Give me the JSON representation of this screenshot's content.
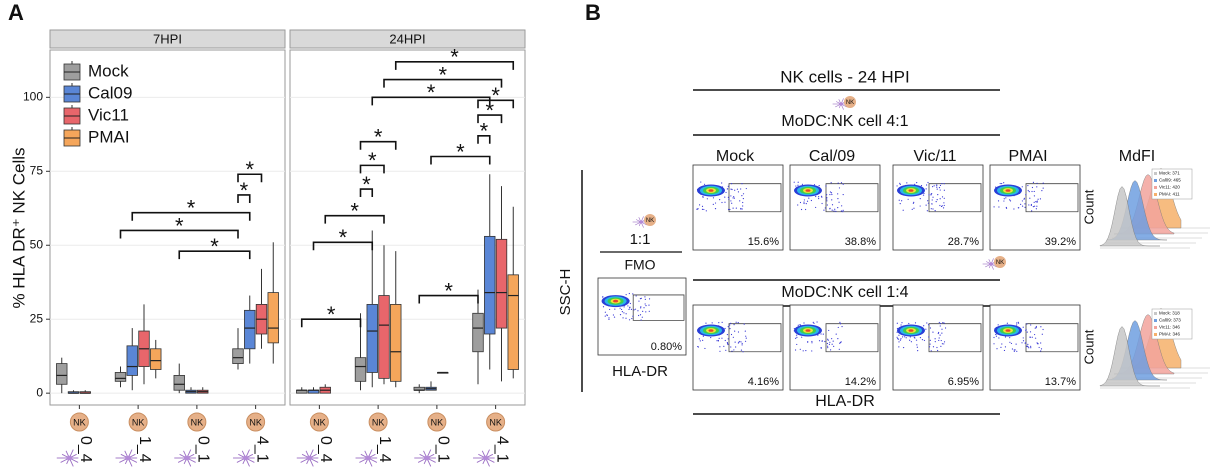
{
  "panel_labels": [
    "A",
    "B"
  ],
  "chart_data": {
    "type": "box",
    "ylabel": "% HLA DR⁺ NK Cells",
    "facets": [
      "7HPI",
      "24HPI"
    ],
    "categories": [
      "0_4",
      "1_4",
      "0_1",
      "4_1"
    ],
    "icon_label": "NK",
    "ylim": [
      -4,
      116
    ],
    "yticks": [
      0,
      25,
      50,
      75,
      100
    ],
    "grid": true,
    "legend": "top-left",
    "series": [
      {
        "name": "Mock",
        "color": "#9e9e9e",
        "values": [
          [
            [
              0,
              3,
              6,
              10,
              12
            ],
            [
              2,
              4,
              5,
              7,
              9
            ],
            [
              0,
              1,
              3,
              6,
              10
            ],
            [
              8,
              10,
              12,
              15,
              22
            ]
          ],
          [
            [
              0,
              0,
              1,
              1,
              2
            ],
            [
              1,
              4,
              9,
              12,
              27
            ],
            [
              0,
              1,
              1,
              2,
              3
            ],
            [
              3,
              14,
              22,
              27,
              35
            ]
          ]
        ]
      },
      {
        "name": "Cal09",
        "color": "#5a86d6",
        "values": [
          [
            [
              0,
              0,
              0,
              0.5,
              1
            ],
            [
              1,
              6,
              9,
              16,
              22
            ],
            [
              0,
              0,
              0.5,
              1,
              2
            ],
            [
              10,
              15,
              22,
              28,
              33
            ]
          ],
          [
            [
              0,
              0,
              1,
              1,
              2
            ],
            [
              2,
              7,
              21,
              30,
              55
            ],
            [
              1,
              1,
              1.5,
              2,
              4
            ],
            [
              8,
              20,
              34,
              53,
              74
            ]
          ]
        ]
      },
      {
        "name": "Vic11",
        "color": "#e8666b",
        "values": [
          [
            [
              0,
              0,
              0,
              0.5,
              1
            ],
            [
              3,
              9,
              15,
              21,
              30
            ],
            [
              0,
              0,
              0.5,
              1,
              2
            ],
            [
              15,
              20,
              25,
              30,
              42
            ]
          ],
          [
            [
              0,
              0,
              1,
              2,
              3
            ],
            [
              3,
              5,
              23,
              33,
              50
            ],
            [
              7,
              7,
              7,
              7,
              7
            ],
            [
              4,
              22,
              34,
              52,
              70
            ]
          ]
        ]
      },
      {
        "name": "PMAI",
        "color": "#f5a65b",
        "values": [
          [
            null,
            [
              5,
              8,
              11,
              15,
              18
            ],
            null,
            [
              10,
              17,
              22,
              34,
              51
            ]
          ],
          [
            null,
            [
              2,
              4,
              14,
              30,
              48
            ],
            null,
            [
              5,
              8,
              33,
              40,
              63
            ]
          ]
        ]
      }
    ],
    "annotations": [
      {
        "text": "*",
        "facet": 0,
        "from": [
          1,
          1
        ],
        "to": [
          3,
          1
        ],
        "y": 61
      },
      {
        "text": "*",
        "facet": 0,
        "from": [
          1,
          0
        ],
        "to": [
          3,
          0
        ],
        "y": 55
      },
      {
        "text": "*",
        "facet": 0,
        "from": [
          2,
          0
        ],
        "to": [
          3,
          1
        ],
        "y": 48
      },
      {
        "text": "*",
        "facet": 0,
        "from": [
          3,
          0
        ],
        "to": [
          3,
          1
        ],
        "y": 67
      },
      {
        "text": "*",
        "facet": 0,
        "from": [
          3,
          0
        ],
        "to": [
          3,
          2
        ],
        "y": 74
      },
      {
        "text": "*",
        "facet": 1,
        "from": [
          0,
          0
        ],
        "to": [
          1,
          0
        ],
        "y": 25
      },
      {
        "text": "*",
        "facet": 1,
        "from": [
          0,
          1
        ],
        "to": [
          1,
          1
        ],
        "y": 51
      },
      {
        "text": "*",
        "facet": 1,
        "from": [
          0,
          2
        ],
        "to": [
          1,
          2
        ],
        "y": 60
      },
      {
        "text": "*",
        "facet": 1,
        "from": [
          1,
          0
        ],
        "to": [
          1,
          1
        ],
        "y": 69
      },
      {
        "text": "*",
        "facet": 1,
        "from": [
          1,
          0
        ],
        "to": [
          1,
          2
        ],
        "y": 77
      },
      {
        "text": "*",
        "facet": 1,
        "from": [
          1,
          0
        ],
        "to": [
          1,
          3
        ],
        "y": 85
      },
      {
        "text": "*",
        "facet": 1,
        "from": [
          2,
          0
        ],
        "to": [
          3,
          0
        ],
        "y": 33
      },
      {
        "text": "*",
        "facet": 1,
        "from": [
          2,
          1
        ],
        "to": [
          3,
          1
        ],
        "y": 80
      },
      {
        "text": "*",
        "facet": 1,
        "from": [
          3,
          0
        ],
        "to": [
          3,
          1
        ],
        "y": 87
      },
      {
        "text": "*",
        "facet": 1,
        "from": [
          3,
          0
        ],
        "to": [
          3,
          2
        ],
        "y": 94
      },
      {
        "text": "*",
        "facet": 1,
        "from": [
          3,
          0
        ],
        "to": [
          3,
          3
        ],
        "y": 99
      },
      {
        "text": "*",
        "facet": 1,
        "from": [
          1,
          1
        ],
        "to": [
          3,
          1
        ],
        "y": 100
      },
      {
        "text": "*",
        "facet": 1,
        "from": [
          1,
          2
        ],
        "to": [
          3,
          2
        ],
        "y": 106
      },
      {
        "text": "*",
        "facet": 1,
        "from": [
          1,
          3
        ],
        "to": [
          3,
          3
        ],
        "y": 112
      }
    ]
  },
  "panel_b": {
    "title": "NK cells - 24 HPI",
    "icon_label": "NK",
    "columns": [
      "Mock",
      "Cal/09",
      "Vic/11",
      "PMAI",
      "MdFI"
    ],
    "column_colors": [
      "#111111",
      "#1f3a7a",
      "#7a1f24",
      "#8a5a1a",
      "#111111"
    ],
    "rows": [
      {
        "label": "MoDC:NK cell 4:1",
        "percents": [
          "15.6%",
          "38.8%",
          "28.7%",
          "39.2%"
        ],
        "mdfi": [
          "Mock: 371",
          "Cal09: 465",
          "Vic11: 420",
          "PMAI: 411"
        ]
      },
      {
        "label": "MoDC:NK cell 1:4",
        "percents": [
          "4.16%",
          "14.2%",
          "6.95%",
          "13.7%"
        ],
        "mdfi": [
          "Mock: 318",
          "Cal09: 373",
          "Vic11: 346",
          "PMAI: 346"
        ]
      }
    ],
    "y_axis": "SSC-H",
    "x_axis": "HLA-DR",
    "count_label": "Count",
    "fmo": {
      "ratio": "1:1",
      "label": "FMO",
      "percent": "0.80%",
      "x_axis": "HLA-DR"
    }
  }
}
